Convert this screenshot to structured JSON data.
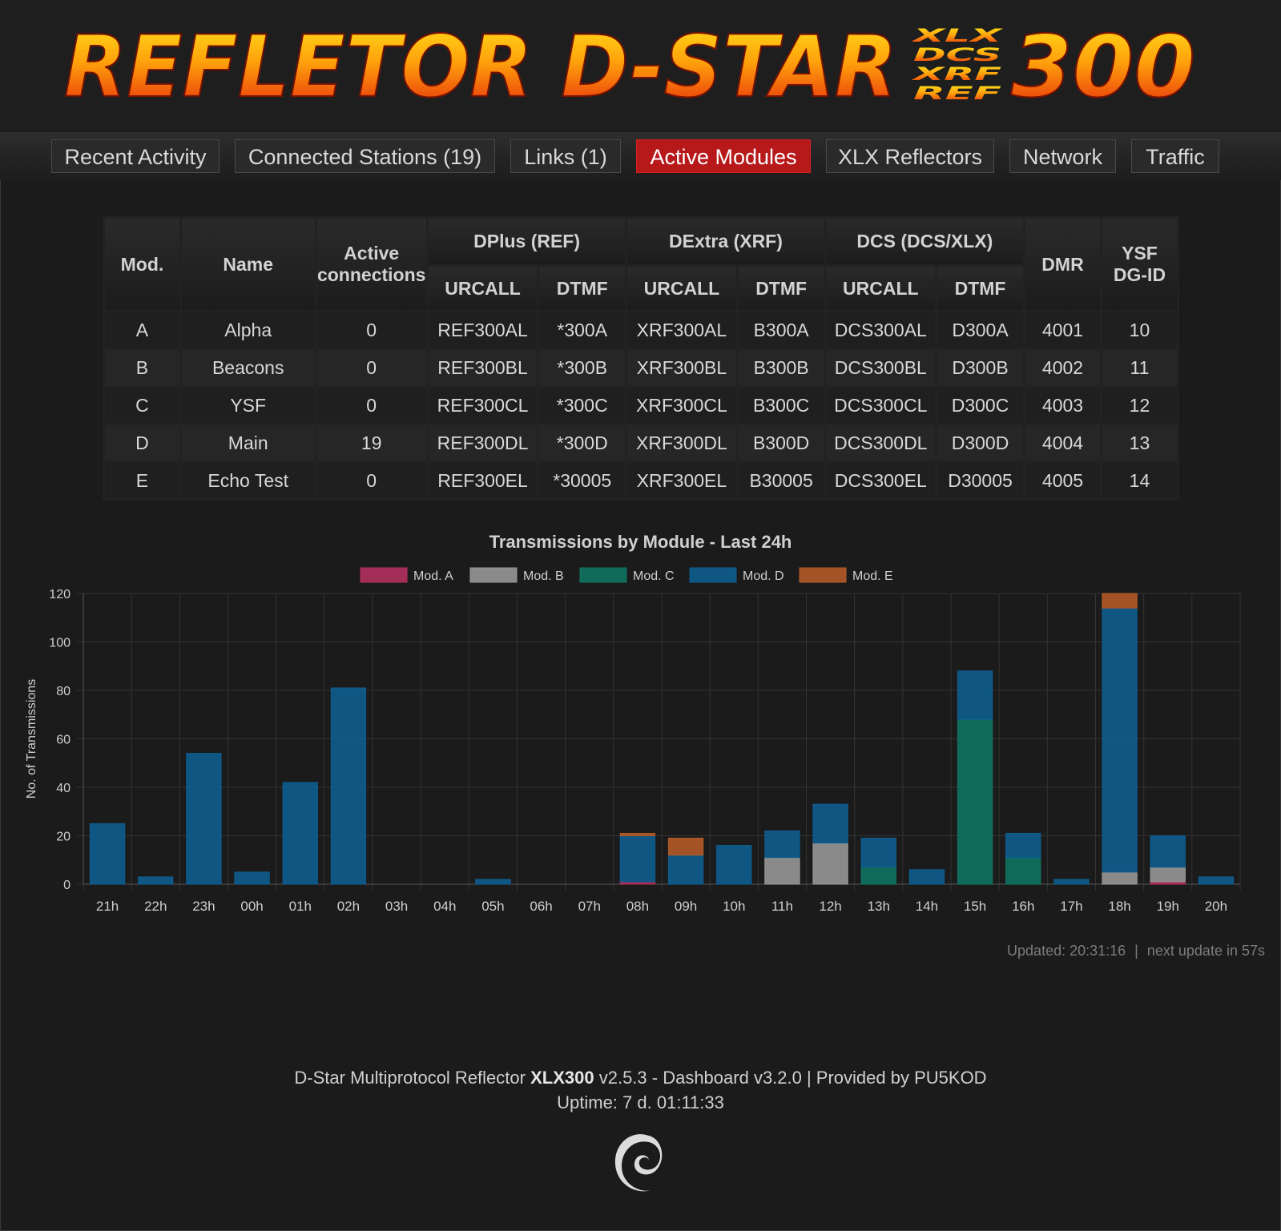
{
  "banner": {
    "title": "REFLETOR D-STAR",
    "protocols": [
      "XLX",
      "DCS",
      "XRF",
      "REF"
    ],
    "number": "300"
  },
  "nav": {
    "items": [
      {
        "label": "Recent Activity",
        "active": false
      },
      {
        "label": "Connected Stations (19)",
        "active": false
      },
      {
        "label": "Links (1)",
        "active": false
      },
      {
        "label": "Active Modules",
        "active": true
      },
      {
        "label": "XLX Reflectors",
        "active": false
      },
      {
        "label": "Network",
        "active": false
      },
      {
        "label": "Traffic",
        "active": false
      }
    ]
  },
  "table": {
    "headers": {
      "mod": "Mod.",
      "name": "Name",
      "active_connections": "Active connections",
      "dplus": "DPlus (REF)",
      "dextra": "DExtra (XRF)",
      "dcs": "DCS (DCS/XLX)",
      "dmr": "DMR",
      "ysf": "YSF DG-ID",
      "urcall": "URCALL",
      "dtmf": "DTMF"
    },
    "rows": [
      [
        "A",
        "Alpha",
        "0",
        "REF300AL",
        "*300A",
        "XRF300AL",
        "B300A",
        "DCS300AL",
        "D300A",
        "4001",
        "10"
      ],
      [
        "B",
        "Beacons",
        "0",
        "REF300BL",
        "*300B",
        "XRF300BL",
        "B300B",
        "DCS300BL",
        "D300B",
        "4002",
        "11"
      ],
      [
        "C",
        "YSF",
        "0",
        "REF300CL",
        "*300C",
        "XRF300CL",
        "B300C",
        "DCS300CL",
        "D300C",
        "4003",
        "12"
      ],
      [
        "D",
        "Main",
        "19",
        "REF300DL",
        "*300D",
        "XRF300DL",
        "B300D",
        "DCS300DL",
        "D300D",
        "4004",
        "13"
      ],
      [
        "E",
        "Echo Test",
        "0",
        "REF300EL",
        "*30005",
        "XRF300EL",
        "B30005",
        "DCS300EL",
        "D30005",
        "4005",
        "14"
      ]
    ]
  },
  "chart_data": {
    "type": "bar",
    "stacked": true,
    "title": "Transmissions by Module - Last 24h",
    "ylabel": "No. of Transmissions",
    "xlabel": "",
    "ylim": [
      0,
      120
    ],
    "yticks": [
      0,
      20,
      40,
      60,
      80,
      100,
      120
    ],
    "grid": true,
    "legend": "top",
    "categories": [
      "21h",
      "22h",
      "23h",
      "00h",
      "01h",
      "02h",
      "03h",
      "04h",
      "05h",
      "06h",
      "07h",
      "08h",
      "09h",
      "10h",
      "11h",
      "12h",
      "13h",
      "14h",
      "15h",
      "16h",
      "17h",
      "18h",
      "19h",
      "20h"
    ],
    "series": [
      {
        "name": "Mod. A",
        "color": "#b5305f",
        "values": [
          0,
          0,
          0,
          0,
          0,
          0,
          0,
          0,
          0,
          0,
          0,
          1,
          0,
          0,
          0,
          0,
          0,
          0,
          0,
          0,
          0,
          0,
          1,
          0
        ]
      },
      {
        "name": "Mod. B",
        "color": "#9a9a9a",
        "values": [
          0,
          0,
          0,
          0,
          0,
          0,
          0,
          0,
          0,
          0,
          0,
          0,
          0,
          0,
          11,
          17,
          0,
          0,
          0,
          0,
          0,
          5,
          6,
          0
        ]
      },
      {
        "name": "Mod. C",
        "color": "#0f7563",
        "values": [
          0,
          0,
          0,
          0,
          0,
          0,
          0,
          0,
          0,
          0,
          0,
          0,
          0,
          0,
          0,
          0,
          7,
          0,
          68,
          11,
          0,
          0,
          0,
          0
        ]
      },
      {
        "name": "Mod. D",
        "color": "#0e5e91",
        "values": [
          25,
          3,
          54,
          5,
          42,
          81,
          0,
          0,
          2,
          0,
          0,
          19,
          12,
          16,
          11,
          16,
          12,
          6,
          20,
          10,
          2,
          109,
          13,
          3
        ]
      },
      {
        "name": "Mod. E",
        "color": "#b65b28",
        "values": [
          0,
          0,
          0,
          0,
          0,
          0,
          0,
          0,
          0,
          0,
          0,
          1,
          7,
          0,
          0,
          0,
          0,
          0,
          0,
          0,
          0,
          6,
          0,
          0
        ]
      }
    ]
  },
  "status": {
    "updated": "Updated: 20:31:16",
    "separator": "|",
    "next_update": "next update in 57s"
  },
  "footer": {
    "prefix": "D-Star Multiprotocol Reflector",
    "reflector": "XLX300",
    "suffix": "v2.5.3 - Dashboard v3.2.0 | Provided by PU5KOD",
    "uptime": "Uptime: 7 d. 01:11:33",
    "logo_icon": "debian-swirl-icon"
  }
}
